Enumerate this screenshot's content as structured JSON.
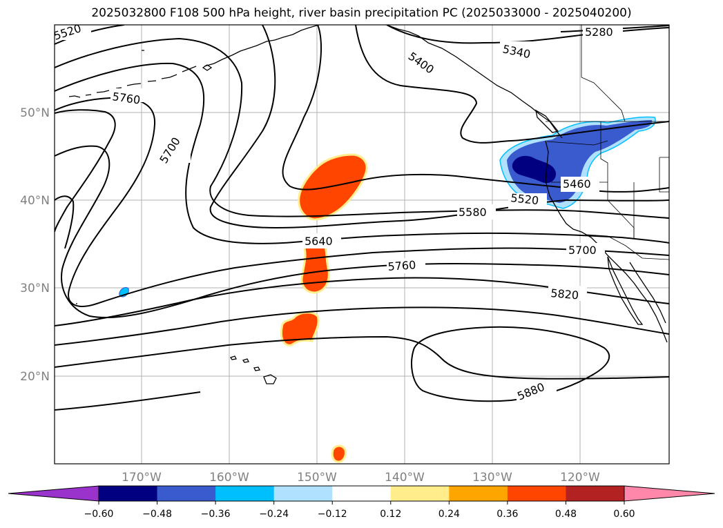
{
  "title": "2025032800 F108 500 hPa height, river basin precipitation PC (2025033000 - 2025040200)",
  "colors": {
    "contour": "#000000",
    "grid": "#b0b0b0",
    "coast": "#000000",
    "tick_label": "#808080"
  },
  "latitude_labels": [
    "50°N",
    "40°N",
    "30°N",
    "20°N"
  ],
  "longitude_labels": [
    "170°W",
    "160°W",
    "150°W",
    "140°W",
    "130°W",
    "120°W"
  ],
  "contour_labels": [
    "5520",
    "5760",
    "5700",
    "5400",
    "5340",
    "5280",
    "5460",
    "5520",
    "5580",
    "5640",
    "5700",
    "5760",
    "5820",
    "5880"
  ],
  "colorbar": {
    "ticks": [
      "−0.60",
      "−0.48",
      "−0.36",
      "−0.24",
      "−0.12",
      "0.12",
      "0.24",
      "0.36",
      "0.48",
      "0.60"
    ],
    "colors": [
      "#9933cc",
      "#000080",
      "#3a5bcd",
      "#00bfff",
      "#b0e2ff",
      "#ffffff",
      "#ffec8b",
      "#ffa500",
      "#ff4500",
      "#b22222",
      "#ff88aa"
    ]
  }
}
